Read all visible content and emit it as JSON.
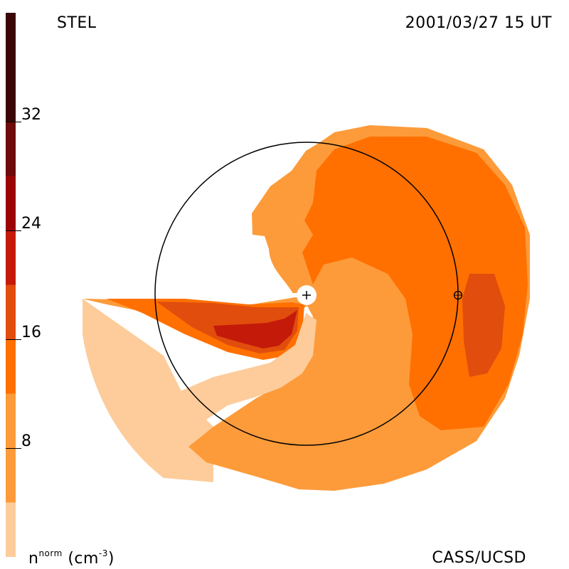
{
  "header": {
    "left_label": "STEL",
    "right_label": "2001/03/27 15 UT"
  },
  "footer": {
    "right_label": "CASS/UCSD",
    "unit_base": "n",
    "unit_sup": "norm",
    "unit_rest": "(cm",
    "unit_exp": "-3",
    "unit_close": ")"
  },
  "colorbar": {
    "min": 0,
    "max": 40,
    "ticks": [
      "32",
      "24",
      "16",
      "8"
    ],
    "tick_values": [
      32,
      24,
      16,
      8
    ],
    "levels": [
      {
        "from": 0,
        "to": 4,
        "color": "#fdcc9a"
      },
      {
        "from": 4,
        "to": 12,
        "color": "#fd9b3a"
      },
      {
        "from": 12,
        "to": 16,
        "color": "#ff7000"
      },
      {
        "from": 16,
        "to": 20,
        "color": "#e14d0d"
      },
      {
        "from": 20,
        "to": 24,
        "color": "#c41a0a"
      },
      {
        "from": 24,
        "to": 28,
        "color": "#9c0505"
      },
      {
        "from": 28,
        "to": 32,
        "color": "#6e0a0a"
      },
      {
        "from": 32,
        "to": 40,
        "color": "#3a0606"
      }
    ]
  },
  "colors": {
    "level1": "#fdcc9a",
    "level2": "#fd9b3a",
    "level3": "#ff7000",
    "level4": "#e14d0d",
    "level5": "#c41a0a",
    "orbit": "#000000"
  },
  "symbols": {
    "sun": "sun-icon",
    "earth": "earth-icon"
  }
}
